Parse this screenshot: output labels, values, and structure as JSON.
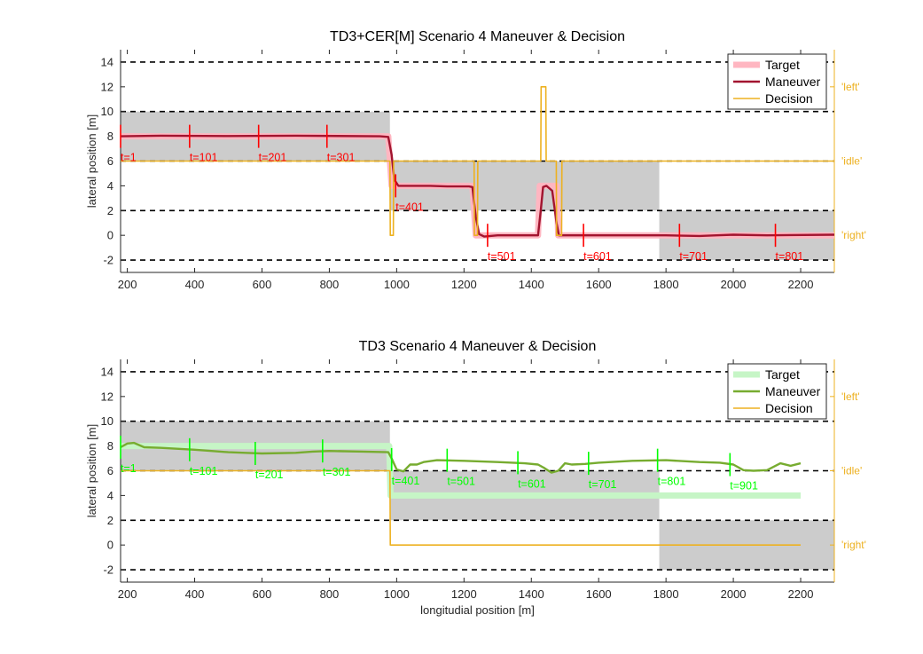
{
  "chart_data": [
    {
      "type": "line",
      "title": "TD3+CER[M] Scenario 4 Maneuver & Decision",
      "xlabel": "",
      "ylabel": "lateral position [m]",
      "xlim": [
        180,
        2300
      ],
      "ylim": [
        -3,
        15
      ],
      "xticks": [
        200,
        400,
        600,
        800,
        1000,
        1200,
        1400,
        1600,
        1800,
        2000,
        2200
      ],
      "yticks": [
        -2,
        0,
        2,
        4,
        6,
        8,
        10,
        12,
        14
      ],
      "lane_boundaries": [
        -2,
        2,
        6,
        10,
        14
      ],
      "right_axis_labels": [
        {
          "label": "'left'",
          "y": 12
        },
        {
          "label": "'idle'",
          "y": 6
        },
        {
          "label": "'right'",
          "y": 0
        }
      ],
      "maneuver_color": "#A2142F",
      "target_color": "#FFB6C1",
      "decision_color": "#EDB120",
      "marker_color": "#FF0000",
      "legend": [
        "Target",
        "Maneuver",
        "Decision"
      ],
      "legend_position": "top-right",
      "shaded_regions": [
        {
          "x0": 180,
          "x1": 980,
          "y0": 6,
          "y1": 10
        },
        {
          "x0": 980,
          "x1": 1780,
          "y0": 2,
          "y1": 6
        },
        {
          "x0": 1780,
          "x1": 2300,
          "y0": -2,
          "y1": 2
        }
      ],
      "target": [
        [
          180,
          8
        ],
        [
          975,
          8
        ],
        [
          985,
          4
        ],
        [
          1225,
          4
        ],
        [
          1235,
          0
        ],
        [
          1420,
          0
        ],
        [
          1425,
          4
        ],
        [
          1475,
          4
        ],
        [
          1480,
          0
        ],
        [
          2300,
          0
        ]
      ],
      "maneuver": [
        [
          180,
          8
        ],
        [
          300,
          8.05
        ],
        [
          500,
          8.02
        ],
        [
          700,
          8.05
        ],
        [
          950,
          8.0
        ],
        [
          975,
          7.95
        ],
        [
          985,
          6.5
        ],
        [
          993,
          4.5
        ],
        [
          1005,
          4.0
        ],
        [
          1100,
          4.0
        ],
        [
          1150,
          3.95
        ],
        [
          1215,
          3.95
        ],
        [
          1225,
          3.9
        ],
        [
          1235,
          1.5
        ],
        [
          1245,
          0.1
        ],
        [
          1260,
          -0.1
        ],
        [
          1300,
          0.0
        ],
        [
          1400,
          0.0
        ],
        [
          1420,
          0.0
        ],
        [
          1428,
          2.0
        ],
        [
          1435,
          3.9
        ],
        [
          1445,
          4.0
        ],
        [
          1462,
          3.6
        ],
        [
          1475,
          1.0
        ],
        [
          1482,
          0.0
        ],
        [
          1600,
          0.0
        ],
        [
          1800,
          0.0
        ],
        [
          1900,
          -0.05
        ],
        [
          1950,
          0.0
        ],
        [
          2000,
          0.05
        ],
        [
          2100,
          0.0
        ],
        [
          2300,
          0.05
        ]
      ],
      "decision": [
        [
          180,
          6
        ],
        [
          980,
          6
        ],
        [
          981,
          0
        ],
        [
          990,
          0
        ],
        [
          991,
          6
        ],
        [
          1230,
          6
        ],
        [
          1231,
          0
        ],
        [
          1240,
          0
        ],
        [
          1241,
          6
        ],
        [
          1428,
          6
        ],
        [
          1429,
          12
        ],
        [
          1443,
          12
        ],
        [
          1444,
          6
        ],
        [
          1474,
          6
        ],
        [
          1475,
          0
        ],
        [
          1490,
          0
        ],
        [
          1491,
          6
        ],
        [
          2300,
          6
        ]
      ],
      "time_markers": [
        {
          "label": "t=1",
          "x": 180,
          "y": 8
        },
        {
          "label": "t=101",
          "x": 385,
          "y": 8
        },
        {
          "label": "t=201",
          "x": 590,
          "y": 8
        },
        {
          "label": "t=301",
          "x": 793,
          "y": 8
        },
        {
          "label": "t=401",
          "x": 997,
          "y": 4
        },
        {
          "label": "t=501",
          "x": 1270,
          "y": 0
        },
        {
          "label": "t=601",
          "x": 1555,
          "y": 0
        },
        {
          "label": "t=701",
          "x": 1840,
          "y": 0
        },
        {
          "label": "t=801",
          "x": 2125,
          "y": 0
        }
      ]
    },
    {
      "type": "line",
      "title": "TD3 Scenario 4 Maneuver & Decision",
      "xlabel": "longitudial position [m]",
      "ylabel": "lateral position [m]",
      "xlim": [
        180,
        2300
      ],
      "ylim": [
        -3,
        15
      ],
      "xticks": [
        200,
        400,
        600,
        800,
        1000,
        1200,
        1400,
        1600,
        1800,
        2000,
        2200
      ],
      "yticks": [
        -2,
        0,
        2,
        4,
        6,
        8,
        10,
        12,
        14
      ],
      "lane_boundaries": [
        -2,
        2,
        6,
        10,
        14
      ],
      "right_axis_labels": [
        {
          "label": "'left'",
          "y": 12
        },
        {
          "label": "'idle'",
          "y": 6
        },
        {
          "label": "'right'",
          "y": 0
        }
      ],
      "maneuver_color": "#77AC30",
      "target_color": "#C6F5C6",
      "decision_color": "#EDB120",
      "marker_color": "#00FF00",
      "legend": [
        "Target",
        "Maneuver",
        "Decision"
      ],
      "legend_position": "top-right",
      "shaded_regions": [
        {
          "x0": 180,
          "x1": 980,
          "y0": 6,
          "y1": 10
        },
        {
          "x0": 980,
          "x1": 1780,
          "y0": 2,
          "y1": 6
        },
        {
          "x0": 1780,
          "x1": 2300,
          "y0": -2,
          "y1": 2
        }
      ],
      "target": [
        [
          180,
          8
        ],
        [
          978,
          8
        ],
        [
          982,
          4
        ],
        [
          2200,
          4
        ]
      ],
      "maneuver": [
        [
          180,
          7.9
        ],
        [
          200,
          8.2
        ],
        [
          220,
          8.25
        ],
        [
          250,
          7.9
        ],
        [
          300,
          7.85
        ],
        [
          400,
          7.7
        ],
        [
          450,
          7.6
        ],
        [
          500,
          7.5
        ],
        [
          550,
          7.45
        ],
        [
          600,
          7.4
        ],
        [
          700,
          7.45
        ],
        [
          750,
          7.55
        ],
        [
          800,
          7.6
        ],
        [
          900,
          7.55
        ],
        [
          975,
          7.5
        ],
        [
          985,
          7.0
        ],
        [
          1000,
          6.1
        ],
        [
          1020,
          5.95
        ],
        [
          1040,
          6.5
        ],
        [
          1060,
          6.5
        ],
        [
          1080,
          6.7
        ],
        [
          1120,
          6.85
        ],
        [
          1200,
          6.8
        ],
        [
          1300,
          6.7
        ],
        [
          1380,
          6.6
        ],
        [
          1420,
          6.5
        ],
        [
          1440,
          6.2
        ],
        [
          1460,
          5.85
        ],
        [
          1480,
          6.0
        ],
        [
          1500,
          6.6
        ],
        [
          1520,
          6.5
        ],
        [
          1560,
          6.55
        ],
        [
          1600,
          6.65
        ],
        [
          1700,
          6.8
        ],
        [
          1800,
          6.85
        ],
        [
          1900,
          6.7
        ],
        [
          1960,
          6.65
        ],
        [
          2000,
          6.5
        ],
        [
          2030,
          6.05
        ],
        [
          2060,
          6.0
        ],
        [
          2100,
          6.05
        ],
        [
          2140,
          6.6
        ],
        [
          2170,
          6.4
        ],
        [
          2200,
          6.6
        ]
      ],
      "decision": [
        [
          180,
          6
        ],
        [
          980,
          6
        ],
        [
          981,
          0
        ],
        [
          2200,
          0
        ]
      ],
      "time_markers": [
        {
          "label": "t=1",
          "x": 180,
          "y": 7.9
        },
        {
          "label": "t=101",
          "x": 385,
          "y": 7.7
        },
        {
          "label": "t=201",
          "x": 580,
          "y": 7.4
        },
        {
          "label": "t=301",
          "x": 780,
          "y": 7.6
        },
        {
          "label": "t=401",
          "x": 985,
          "y": 6.9
        },
        {
          "label": "t=501",
          "x": 1150,
          "y": 6.85
        },
        {
          "label": "t=601",
          "x": 1360,
          "y": 6.65
        },
        {
          "label": "t=701",
          "x": 1570,
          "y": 6.6
        },
        {
          "label": "t=801",
          "x": 1775,
          "y": 6.85
        },
        {
          "label": "t=901",
          "x": 1990,
          "y": 6.5
        }
      ]
    }
  ]
}
